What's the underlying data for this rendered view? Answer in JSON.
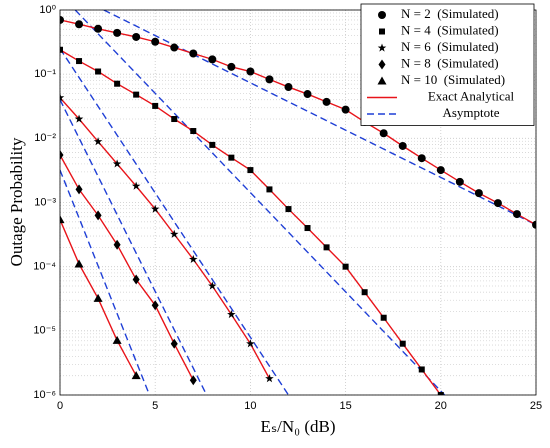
{
  "chart_data": {
    "type": "line",
    "log_y": true,
    "grid": true,
    "legend": "upper right",
    "xlabel": "Eₛ/N₀ (dB)",
    "ylabel": "Outage Probability",
    "xlim": [
      0,
      25
    ],
    "xticks": [
      0,
      5,
      10,
      15,
      20,
      25
    ],
    "ylim": [
      1e-06,
      1
    ],
    "yticks": [
      {
        "value": 1e-06,
        "label": "10⁻⁶"
      },
      {
        "value": 1e-05,
        "label": "10⁻⁵"
      },
      {
        "value": 0.0001,
        "label": "10⁻⁴"
      },
      {
        "value": 0.001,
        "label": "10⁻³"
      },
      {
        "value": 0.01,
        "label": "10⁻²"
      },
      {
        "value": 0.1,
        "label": "10⁻¹"
      },
      {
        "value": 1,
        "label": "10⁰"
      }
    ],
    "simulated": [
      {
        "name": "N = 2  (Simulated)",
        "marker": "circle",
        "color": "#000000",
        "x": [
          0,
          1,
          2,
          3,
          4,
          5,
          6,
          7,
          8,
          9,
          10,
          11,
          12,
          13,
          14,
          15,
          16,
          17,
          18,
          19,
          20,
          21,
          22,
          23,
          24,
          25
        ],
        "values": [
          0.7,
          0.6,
          0.51,
          0.44,
          0.38,
          0.32,
          0.26,
          0.21,
          0.17,
          0.13,
          0.11,
          0.083,
          0.063,
          0.049,
          0.037,
          0.028,
          0.018,
          0.012,
          0.0076,
          0.0049,
          0.0032,
          0.0021,
          0.0014,
          0.00098,
          0.00066,
          0.00045
        ]
      },
      {
        "name": "N = 4  (Simulated)",
        "marker": "square",
        "color": "#000000",
        "x": [
          0,
          1,
          2,
          3,
          4,
          5,
          6,
          7,
          8,
          9,
          10,
          11,
          12,
          13,
          14,
          15,
          16,
          17,
          18,
          19,
          20
        ],
        "values": [
          0.24,
          0.16,
          0.11,
          0.071,
          0.048,
          0.032,
          0.02,
          0.013,
          0.0079,
          0.005,
          0.0032,
          0.0016,
          0.00079,
          0.0004,
          0.0002,
          0.0001,
          4e-05,
          1.6e-05,
          6.3e-06,
          2.5e-06,
          1e-06
        ]
      },
      {
        "name": "N = 6  (Simulated)",
        "marker": "star",
        "color": "#000000",
        "x": [
          0,
          1,
          2,
          3,
          4,
          5,
          6,
          7,
          8,
          9,
          10,
          11
        ],
        "values": [
          0.043,
          0.02,
          0.0089,
          0.004,
          0.0018,
          0.00079,
          0.00032,
          0.00013,
          5e-05,
          1.8e-05,
          6.3e-06,
          1.8e-06
        ]
      },
      {
        "name": "N = 8  (Simulated)",
        "marker": "diamond",
        "color": "#000000",
        "x": [
          0,
          1,
          2,
          3,
          4,
          5,
          6,
          7
        ],
        "values": [
          0.0055,
          0.0016,
          0.00063,
          0.00022,
          6.3e-05,
          2.5e-05,
          6.3e-06,
          1.7e-06
        ]
      },
      {
        "name": "N = 10  (Simulated)",
        "marker": "triangle",
        "color": "#000000",
        "x": [
          0,
          1,
          2,
          3,
          4
        ],
        "values": [
          0.00054,
          0.00011,
          3.2e-05,
          7.1e-06,
          2e-06
        ]
      }
    ],
    "analytical": {
      "name": "Exact Analytical",
      "color": "#e8141a"
    },
    "asymptote": {
      "name": "Asymptote",
      "color": "#1f3fd6",
      "curves": [
        {
          "x": [
            2.3,
            25
          ],
          "values": [
            1,
            0.00045
          ]
        },
        {
          "x": [
            0.8,
            20.2
          ],
          "values": [
            1,
            1e-06
          ]
        },
        {
          "x": [
            0,
            12
          ],
          "values": [
            0.25,
            1e-06
          ]
        },
        {
          "x": [
            0,
            7.7
          ],
          "values": [
            0.04,
            1e-06
          ]
        },
        {
          "x": [
            0,
            4.7
          ],
          "values": [
            0.0032,
            1e-06
          ]
        }
      ]
    }
  }
}
